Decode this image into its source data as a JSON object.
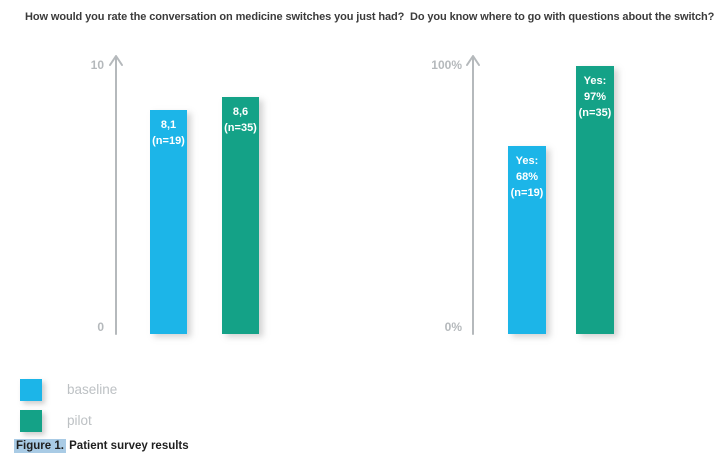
{
  "colors": {
    "baseline": "#1cb5e8",
    "pilot": "#14a287",
    "axis": "#b5b9bc",
    "legend_text": "#bdc1c4",
    "title_text": "#3b3b3b",
    "caption_highlight_bg": "#a9cbe5"
  },
  "chart_data": [
    {
      "type": "bar",
      "title": "How would you rate the conversation on medicine switches you just had?",
      "categories": [
        "baseline",
        "pilot"
      ],
      "values": [
        8.1,
        8.6
      ],
      "n": [
        19,
        35
      ],
      "bar_labels": [
        [
          "8,1",
          "(n=19)"
        ],
        [
          "8,6",
          "(n=35)"
        ]
      ],
      "ylim": [
        0,
        10
      ],
      "axis_labels": {
        "top": "10",
        "bottom": "0"
      },
      "grid": "off",
      "legend_position": "bottom-left"
    },
    {
      "type": "bar",
      "title": "Do you know where to go with questions about the switch?",
      "categories": [
        "baseline",
        "pilot"
      ],
      "values": [
        68,
        97
      ],
      "n": [
        19,
        35
      ],
      "bar_labels": [
        [
          "Yes:",
          "68%",
          "(n=19)"
        ],
        [
          "Yes:",
          "97%",
          "(n=35)"
        ]
      ],
      "ylim": [
        0,
        100
      ],
      "axis_labels": {
        "top": "100%",
        "bottom": "0%"
      },
      "grid": "off",
      "legend_position": "bottom-left"
    }
  ],
  "legend": {
    "items": [
      {
        "label": "baseline",
        "color": "#1cb5e8"
      },
      {
        "label": "pilot",
        "color": "#14a287"
      }
    ]
  },
  "figure": {
    "caption_highlight": "Figure 1.",
    "caption_text": " Patient survey results"
  }
}
